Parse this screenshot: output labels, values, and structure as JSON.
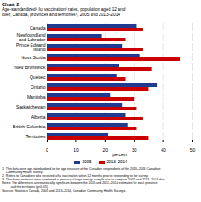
{
  "chart_data": {
    "type": "bar",
    "orientation": "horizontal",
    "title": "Chart 2",
    "subtitle": "Age-standardized¹ flu vaccination² rates, population aged 12 and\nover, Canada, provinces and territories³, 2005 and 2013–2014",
    "categories": [
      "Canada",
      "Newfoundland\nand Labrador",
      "Prince Edward\nIsland",
      "Nova Scotia",
      "New Brunswick",
      "Quebec",
      "Ontario",
      "Manitoba",
      "Saskatchewan",
      "Alberta",
      "British Columbia",
      "Territories"
    ],
    "series": [
      {
        "name": "2005",
        "color": "#1F3A8F",
        "values": [
          31,
          19,
          26,
          32,
          25,
          24,
          38,
          22,
          26,
          27,
          28,
          21
        ]
      },
      {
        "name": "2013–2014",
        "color": "#CC0000",
        "values": [
          33,
          27,
          33,
          46,
          36,
          27,
          35,
          30,
          31,
          33,
          31,
          35
        ]
      }
    ],
    "xlabel": "percent",
    "xlim": [
      0,
      50
    ],
    "xticks": [
      0,
      10,
      20,
      30,
      40,
      50
    ],
    "grid": true,
    "legend": "bottom",
    "annotations": [
      "1.  The data were age-standardized to the age structure of the Canadian respondents of the 2013–2014 Canadian",
      "     Community Health Survey.",
      "2.  Refers to Canadians who received a flu vaccination within 12 months prior to responding to the survey.",
      "3.  The three territories were combined to produce a large enough sample size to compare 2005 and 2013–2014 data.",
      "Notes: The differences are statistically significant between the 2005 and 2013–2014 estimates for each province",
      "          and the territories (p<0.05).",
      "Sources: Statistics Canada, 2005 and 2013–2014, Canadian Community Health Surveys."
    ]
  }
}
